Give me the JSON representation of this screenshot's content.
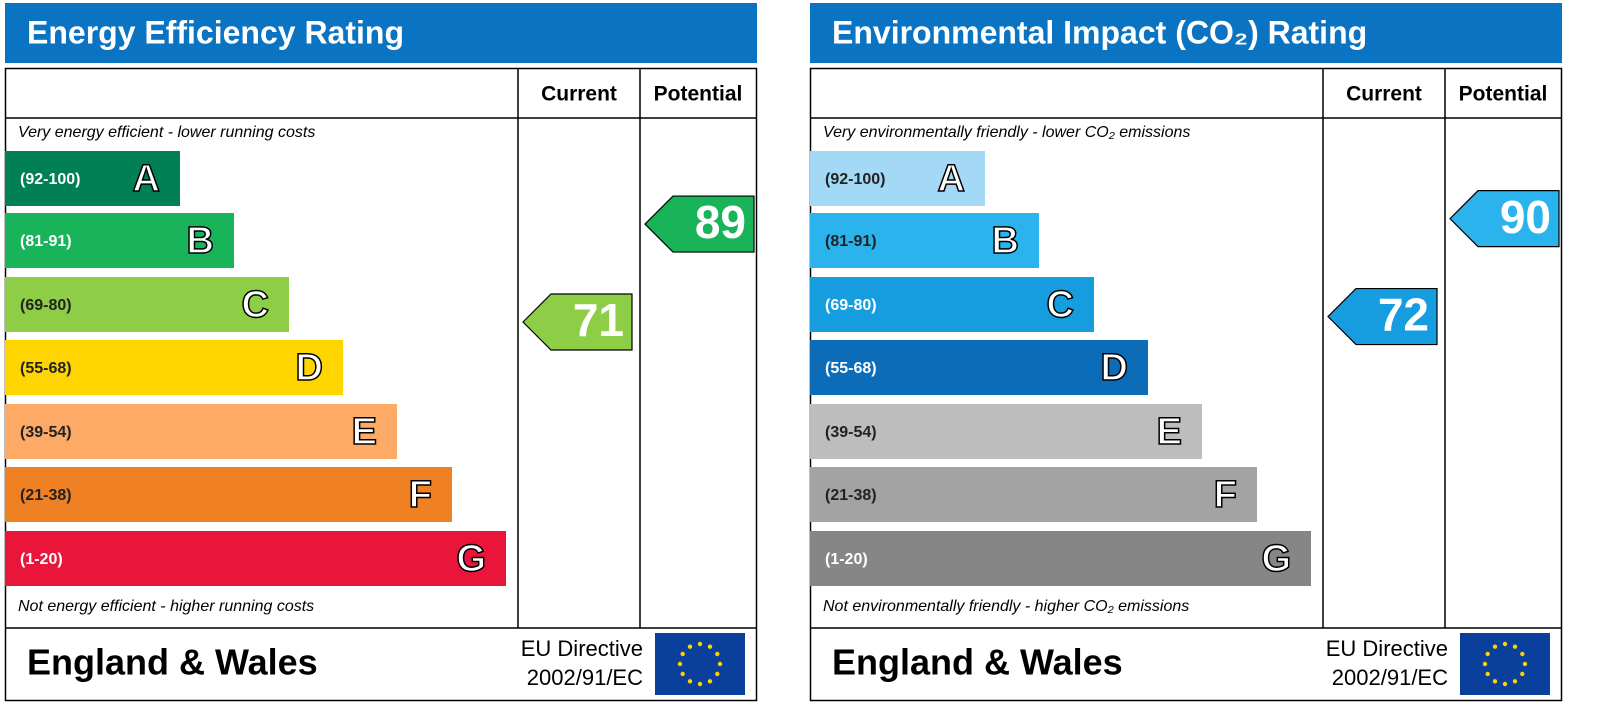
{
  "panels": [
    {
      "title": "Energy Efficiency Rating",
      "columns": [
        "Current",
        "Potential"
      ],
      "top_note": "Very energy efficient - lower running costs",
      "bottom_note": "Not energy efficient - higher running costs",
      "bands": [
        {
          "range": "(92-100)",
          "letter": "A",
          "color": "#008054"
        },
        {
          "range": "(81-91)",
          "letter": "B",
          "color": "#19b459"
        },
        {
          "range": "(69-80)",
          "letter": "C",
          "color": "#8dce46"
        },
        {
          "range": "(55-68)",
          "letter": "D",
          "color": "#ffd500"
        },
        {
          "range": "(39-54)",
          "letter": "E",
          "color": "#fcaa65"
        },
        {
          "range": "(21-38)",
          "letter": "F",
          "color": "#ef8023"
        },
        {
          "range": "(1-20)",
          "letter": "G",
          "color": "#e9153b"
        }
      ],
      "current": 71,
      "potential": 89,
      "region": "England & Wales",
      "directive": [
        "EU Directive",
        "2002/91/EC"
      ]
    },
    {
      "title": "Environmental Impact (CO₂) Rating",
      "columns": [
        "Current",
        "Potential"
      ],
      "top_note": "Very environmentally friendly - lower CO₂ emissions",
      "bottom_note": "Not environmentally friendly - higher CO₂ emissions",
      "bands": [
        {
          "range": "(92-100)",
          "letter": "A",
          "color": "#a3d9f6"
        },
        {
          "range": "(81-91)",
          "letter": "B",
          "color": "#2bb3ee"
        },
        {
          "range": "(69-80)",
          "letter": "C",
          "color": "#169ddf"
        },
        {
          "range": "(55-68)",
          "letter": "D",
          "color": "#0d6cb8"
        },
        {
          "range": "(39-54)",
          "letter": "E",
          "color": "#bdbdbd"
        },
        {
          "range": "(21-38)",
          "letter": "F",
          "color": "#a3a3a3"
        },
        {
          "range": "(1-20)",
          "letter": "G",
          "color": "#868686"
        }
      ],
      "current": 72,
      "potential": 90,
      "region": "England & Wales",
      "directive": [
        "EU Directive",
        "2002/91/EC"
      ]
    }
  ]
}
